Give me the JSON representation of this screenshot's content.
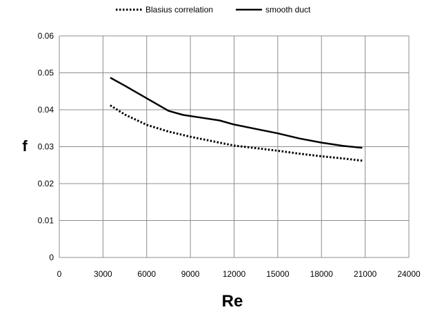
{
  "chart_data": {
    "type": "line",
    "title": "",
    "xlabel": "Re",
    "ylabel": "f",
    "xlim": [
      0,
      24000
    ],
    "ylim": [
      0,
      0.06
    ],
    "x_ticks": [
      0,
      3000,
      6000,
      9000,
      12000,
      15000,
      18000,
      21000,
      24000
    ],
    "y_ticks": [
      0,
      0.01,
      0.02,
      0.03,
      0.04,
      0.05,
      0.06
    ],
    "x_tick_labels": [
      "0",
      "3000",
      "6000",
      "9000",
      "12000",
      "15000",
      "18000",
      "21000",
      "24000"
    ],
    "y_tick_labels": [
      "0",
      "0.01",
      "0.02",
      "0.03",
      "0.04",
      "0.05",
      "0.06"
    ],
    "grid": true,
    "legend_position": "top",
    "series": [
      {
        "name": "Blasius correlation",
        "style": "dotted",
        "color": "#000000",
        "x": [
          3500,
          4500,
          6000,
          7500,
          9000,
          10500,
          12000,
          13500,
          15000,
          16500,
          18000,
          19500,
          20800
        ],
        "y": [
          0.0412,
          0.0387,
          0.0359,
          0.0341,
          0.0327,
          0.0315,
          0.0303,
          0.0296,
          0.0289,
          0.0281,
          0.0274,
          0.0268,
          0.0262
        ]
      },
      {
        "name": "smooth duct",
        "style": "solid",
        "color": "#000000",
        "x": [
          3500,
          4500,
          6000,
          7500,
          8500,
          9500,
          11000,
          12000,
          13500,
          15000,
          16500,
          18000,
          19500,
          20800
        ],
        "y": [
          0.0487,
          0.0465,
          0.0431,
          0.0397,
          0.0386,
          0.038,
          0.0371,
          0.036,
          0.0348,
          0.0336,
          0.0322,
          0.0311,
          0.0302,
          0.0297
        ]
      }
    ]
  }
}
